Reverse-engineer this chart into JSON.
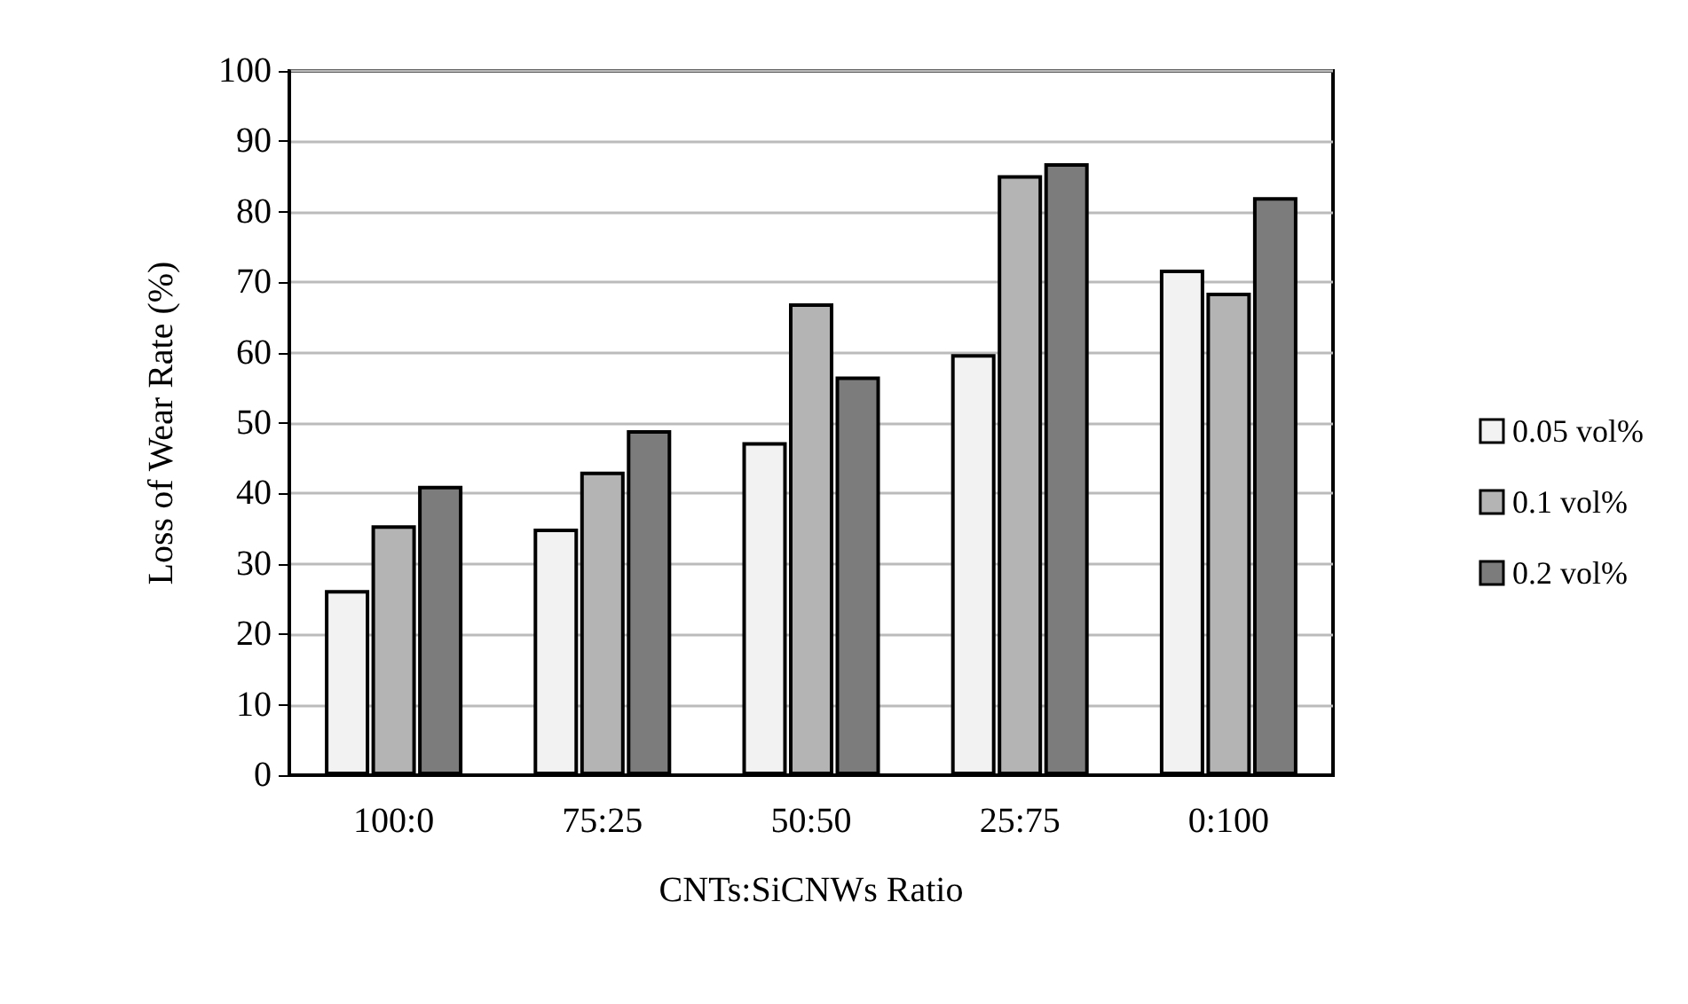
{
  "chart_data": {
    "type": "bar",
    "xlabel": "CNTs:SiCNWs Ratio",
    "ylabel": "Loss of Wear Rate (%)",
    "categories": [
      "100:0",
      "75:25",
      "50:50",
      "25:75",
      "0:100"
    ],
    "series": [
      {
        "name": "0.05 vol%",
        "color": "#f2f2f2",
        "values": [
          26.3,
          35.0,
          47.3,
          59.8,
          71.8
        ]
      },
      {
        "name": "0.1 vol%",
        "color": "#b4b4b4",
        "values": [
          35.5,
          43.1,
          67.0,
          85.2,
          68.5
        ]
      },
      {
        "name": "0.2 vol%",
        "color": "#7c7c7c",
        "values": [
          41.1,
          49.0,
          56.6,
          86.9,
          82.1
        ]
      }
    ],
    "ylim": [
      0,
      100
    ],
    "yticks": [
      0,
      10,
      20,
      30,
      40,
      50,
      60,
      70,
      80,
      90,
      100
    ],
    "grid": "y",
    "legend": "right"
  }
}
